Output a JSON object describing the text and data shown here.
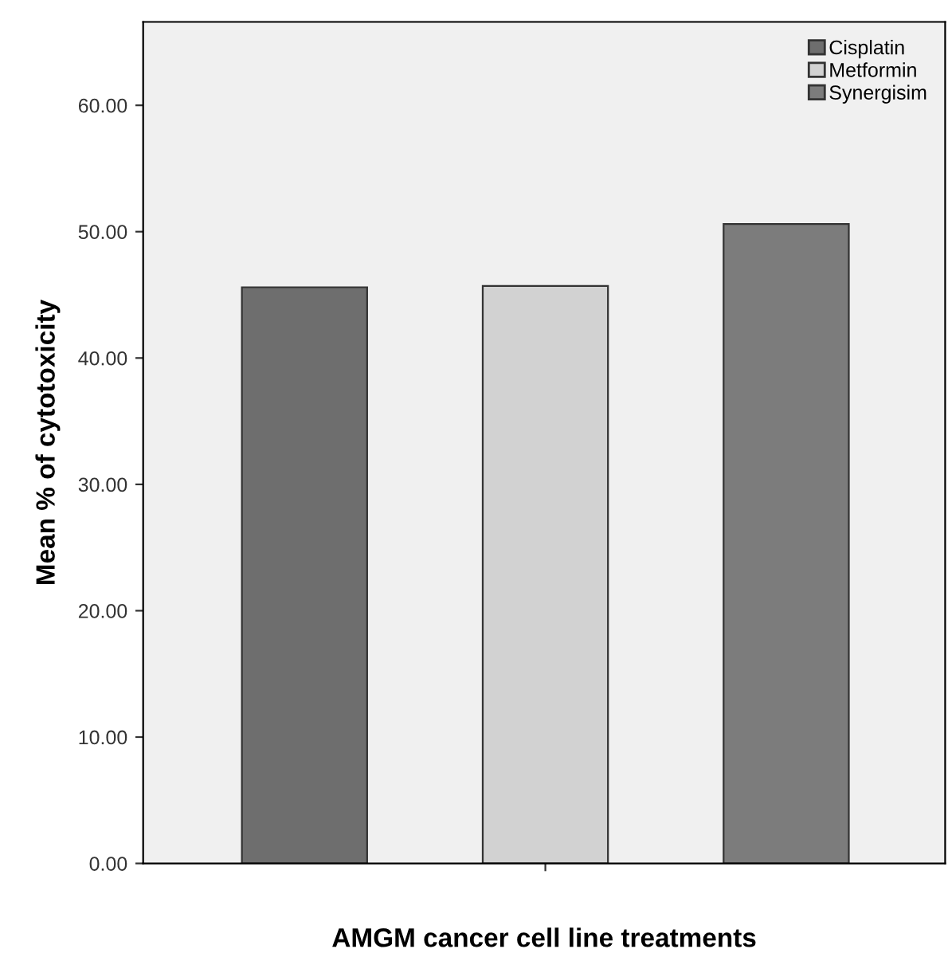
{
  "chart_data": {
    "type": "bar",
    "xlabel": "AMGM cancer cell line treatments",
    "ylabel": "Mean % of cytotoxicity",
    "categories": [
      null
    ],
    "series": [
      {
        "name": "Cisplatin",
        "color": "#6e6e6e",
        "values": [
          45.6
        ]
      },
      {
        "name": "Metformin",
        "color": "#d2d2d2",
        "values": [
          45.7
        ]
      },
      {
        "name": "Synergisim",
        "color": "#7c7c7c",
        "values": [
          50.6
        ]
      }
    ],
    "ylim": [
      0,
      66.6
    ],
    "yticks": [
      {
        "value": 0,
        "label": "0.00"
      },
      {
        "value": 10,
        "label": "10.00"
      },
      {
        "value": 20,
        "label": "20.00"
      },
      {
        "value": 30,
        "label": "30.00"
      },
      {
        "value": 40,
        "label": "40.00"
      },
      {
        "value": 50,
        "label": "50.00"
      },
      {
        "value": 60,
        "label": "60.00"
      }
    ],
    "grid": false,
    "legend": "top right"
  }
}
